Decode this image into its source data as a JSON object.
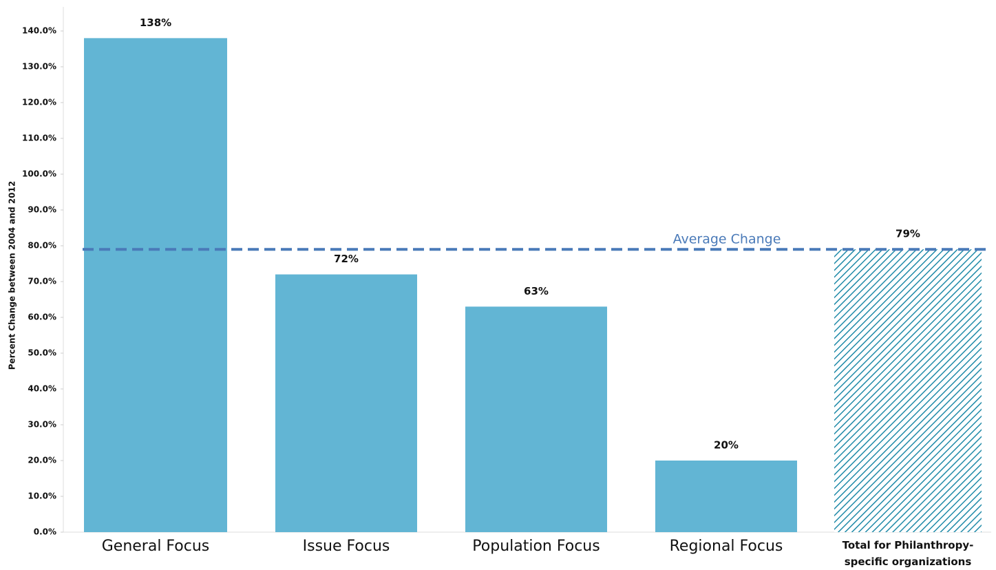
{
  "chart_data": {
    "type": "bar",
    "y_axis_label": "Percent Change between 2004 and 2012",
    "categories": [
      "General Focus",
      "Issue Focus",
      "Population Focus",
      "Regional Focus",
      "Total for Philanthropy-specific organizations"
    ],
    "values": [
      138,
      72,
      63,
      20,
      79
    ],
    "value_labels": [
      "138%",
      "72%",
      "63%",
      "20%",
      "79%"
    ],
    "hatched": [
      false,
      false,
      false,
      false,
      true
    ],
    "color": "#62b5d4",
    "hatch_color": "#1f8aa8",
    "average_line": {
      "label": "Average Change",
      "value": 79,
      "color": "#4a7ab8"
    },
    "ylim": [
      0,
      140
    ],
    "yticks": [
      {
        "value": 0,
        "label": "0.0%"
      },
      {
        "value": 10,
        "label": "10.0%"
      },
      {
        "value": 20,
        "label": "20.0%"
      },
      {
        "value": 30,
        "label": "30.0%"
      },
      {
        "value": 40,
        "label": "40.0%"
      },
      {
        "value": 50,
        "label": "50.0%"
      },
      {
        "value": 60,
        "label": "60.0%"
      },
      {
        "value": 70,
        "label": "70.0%"
      },
      {
        "value": 80,
        "label": "80.0%"
      },
      {
        "value": 90,
        "label": "90.0%"
      },
      {
        "value": 100,
        "label": "100.0%"
      },
      {
        "value": 110,
        "label": "110.0%"
      },
      {
        "value": 120,
        "label": "120.0%"
      },
      {
        "value": 130,
        "label": "130.0%"
      },
      {
        "value": 140,
        "label": "140.0%"
      }
    ]
  }
}
